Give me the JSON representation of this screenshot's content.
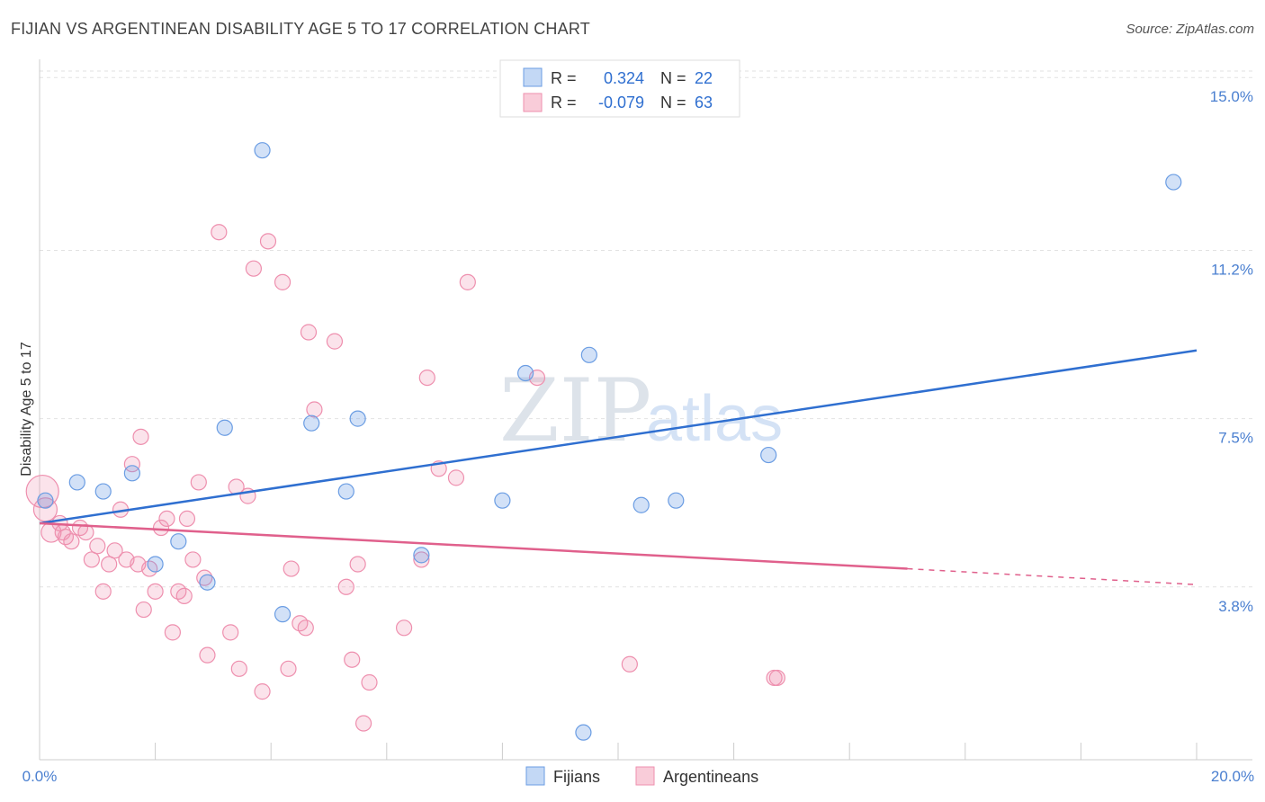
{
  "header": {
    "title": "FIJIAN VS ARGENTINEAN DISABILITY AGE 5 TO 17 CORRELATION CHART",
    "source": "Source: ZipAtlas.com"
  },
  "watermark": {
    "part1": "ZIP",
    "part2": "atlas"
  },
  "legend": {
    "rows": [
      {
        "r_label": "R =",
        "r_value": "0.324",
        "n_label": "N =",
        "n_value": "22"
      },
      {
        "r_label": "R =",
        "r_value": "-0.079",
        "n_label": "N =",
        "n_value": "63"
      }
    ]
  },
  "chart_data": {
    "type": "scatter",
    "title": "FIJIAN VS ARGENTINEAN DISABILITY AGE 5 TO 17 CORRELATION CHART",
    "xlabel": "",
    "ylabel": "Disability Age 5 to 17",
    "xlim": [
      0,
      20
    ],
    "ylim": [
      0,
      15.4
    ],
    "x_tick_labels": [
      "0.0%",
      "20.0%"
    ],
    "y_ticks": [
      3.8,
      7.5,
      11.2,
      15.0
    ],
    "y_tick_labels": [
      "3.8%",
      "7.5%",
      "11.2%",
      "15.0%"
    ],
    "colors": {
      "fijians": "#6b9de3",
      "argentineans": "#ee8fae",
      "fijians_line": "#2f6fd0",
      "argentineans_line": "#e0608c"
    },
    "series": [
      {
        "name": "Fijians",
        "points": [
          [
            0.1,
            5.7
          ],
          [
            0.65,
            6.1
          ],
          [
            1.1,
            5.9
          ],
          [
            1.6,
            6.3
          ],
          [
            2.0,
            4.3
          ],
          [
            2.4,
            4.8
          ],
          [
            2.9,
            3.9
          ],
          [
            3.2,
            7.3
          ],
          [
            3.85,
            13.4
          ],
          [
            4.2,
            3.2
          ],
          [
            4.7,
            7.4
          ],
          [
            5.3,
            5.9
          ],
          [
            5.5,
            7.5
          ],
          [
            6.6,
            4.5
          ],
          [
            8.0,
            5.7
          ],
          [
            8.4,
            8.5
          ],
          [
            9.5,
            8.9
          ],
          [
            9.4,
            0.6
          ],
          [
            10.4,
            5.6
          ],
          [
            11.0,
            5.7
          ],
          [
            12.6,
            6.7
          ],
          [
            19.6,
            12.7
          ]
        ],
        "trend": {
          "x0": 0.0,
          "y0": 5.2,
          "x1": 20.0,
          "y1": 9.0
        }
      },
      {
        "name": "Argentineans",
        "points": [
          [
            0.05,
            5.9
          ],
          [
            0.1,
            5.5
          ],
          [
            0.2,
            5.0
          ],
          [
            0.35,
            5.2
          ],
          [
            0.45,
            4.9
          ],
          [
            0.55,
            4.8
          ],
          [
            0.7,
            5.1
          ],
          [
            0.8,
            5.0
          ],
          [
            0.9,
            4.4
          ],
          [
            1.0,
            4.7
          ],
          [
            1.1,
            3.7
          ],
          [
            1.2,
            4.3
          ],
          [
            1.3,
            4.6
          ],
          [
            1.4,
            5.5
          ],
          [
            1.5,
            4.4
          ],
          [
            1.6,
            6.5
          ],
          [
            1.7,
            4.3
          ],
          [
            1.75,
            7.1
          ],
          [
            1.8,
            3.3
          ],
          [
            1.9,
            4.2
          ],
          [
            2.0,
            3.7
          ],
          [
            2.1,
            5.1
          ],
          [
            2.2,
            5.3
          ],
          [
            2.3,
            2.8
          ],
          [
            2.4,
            3.7
          ],
          [
            2.5,
            3.6
          ],
          [
            2.55,
            5.3
          ],
          [
            2.65,
            4.4
          ],
          [
            2.75,
            6.1
          ],
          [
            2.85,
            4.0
          ],
          [
            2.9,
            2.3
          ],
          [
            3.1,
            11.6
          ],
          [
            3.3,
            2.8
          ],
          [
            3.4,
            6.0
          ],
          [
            3.45,
            2.0
          ],
          [
            3.6,
            5.8
          ],
          [
            3.7,
            10.8
          ],
          [
            3.85,
            1.5
          ],
          [
            3.95,
            11.4
          ],
          [
            4.2,
            10.5
          ],
          [
            4.3,
            2.0
          ],
          [
            4.35,
            4.2
          ],
          [
            4.5,
            3.0
          ],
          [
            4.6,
            2.9
          ],
          [
            4.65,
            9.4
          ],
          [
            4.75,
            7.7
          ],
          [
            5.1,
            9.2
          ],
          [
            5.3,
            3.8
          ],
          [
            5.4,
            2.2
          ],
          [
            5.5,
            4.3
          ],
          [
            5.7,
            1.7
          ],
          [
            5.6,
            0.8
          ],
          [
            6.3,
            2.9
          ],
          [
            6.6,
            4.4
          ],
          [
            6.7,
            8.4
          ],
          [
            6.9,
            6.4
          ],
          [
            7.2,
            6.2
          ],
          [
            7.4,
            10.5
          ],
          [
            10.2,
            2.1
          ],
          [
            12.7,
            1.8
          ],
          [
            12.75,
            1.8
          ],
          [
            8.6,
            8.4
          ],
          [
            0.4,
            5.0
          ]
        ],
        "trend": {
          "x0": 0.0,
          "y0": 5.2,
          "x1": 15.0,
          "y1": 4.2,
          "dash_to_x": 20.0,
          "dash_to_y": 3.85
        }
      }
    ],
    "bottom_legend": [
      "Fijians",
      "Argentineans"
    ]
  }
}
